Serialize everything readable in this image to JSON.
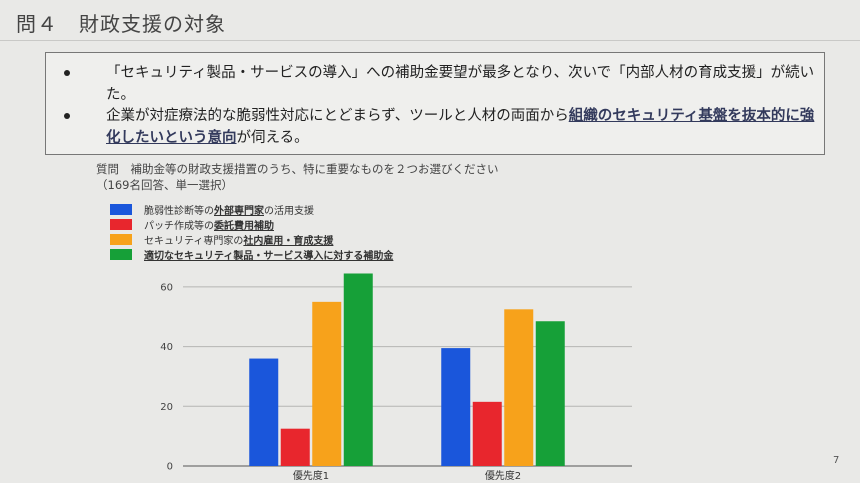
{
  "slide": {
    "title": "問４　財政支援の対象",
    "page_number": "7"
  },
  "summary": {
    "bullet1": "「セキュリティ製品・サービスの導入」への補助金要望が最多となり、次いで「内部人材の育成支援」が続いた。",
    "bullet2_pre": "企業が対症療法的な脆弱性対応にとどまらず、ツールと人材の両面から",
    "bullet2_emph": "組織のセキュリティ基盤を抜本的に強化したいという意向",
    "bullet2_post": "が伺える。"
  },
  "question": {
    "line1": "質問　補助金等の財政支援措置のうち、特に重要なものを２つお選びください",
    "line2": "（169名回答、単一選択）"
  },
  "legend": [
    {
      "pre": "脆弱性診断等の",
      "emph": "外部専門家",
      "post": "の活用支援",
      "color": "#1a56db"
    },
    {
      "pre": "パッチ作成等の",
      "emph": "委託費用補助",
      "post": "",
      "color": "#e8262d"
    },
    {
      "pre": "セキュリティ専門家の",
      "emph": "社内雇用・育成支援",
      "post": "",
      "color": "#f7a21b"
    },
    {
      "pre": "",
      "emph": "適切なセキュリティ製品・サービス導入に対する補助金",
      "post": "",
      "color": "#16a038"
    }
  ],
  "chart_data": {
    "type": "bar",
    "categories": [
      "優先度1",
      "優先度2"
    ],
    "series": [
      {
        "values": [
          36,
          39.5
        ],
        "color": "#1a56db"
      },
      {
        "values": [
          12.5,
          21.5
        ],
        "color": "#e8262d"
      },
      {
        "values": [
          55,
          52.5
        ],
        "color": "#f7a21b"
      },
      {
        "values": [
          64.5,
          48.5
        ],
        "color": "#16a038"
      }
    ],
    "ylim": [
      0,
      65
    ],
    "yticks": [
      "0",
      "20",
      "40",
      "60"
    ],
    "ytick_values": [
      0,
      20,
      40,
      60
    ],
    "grid": true
  }
}
